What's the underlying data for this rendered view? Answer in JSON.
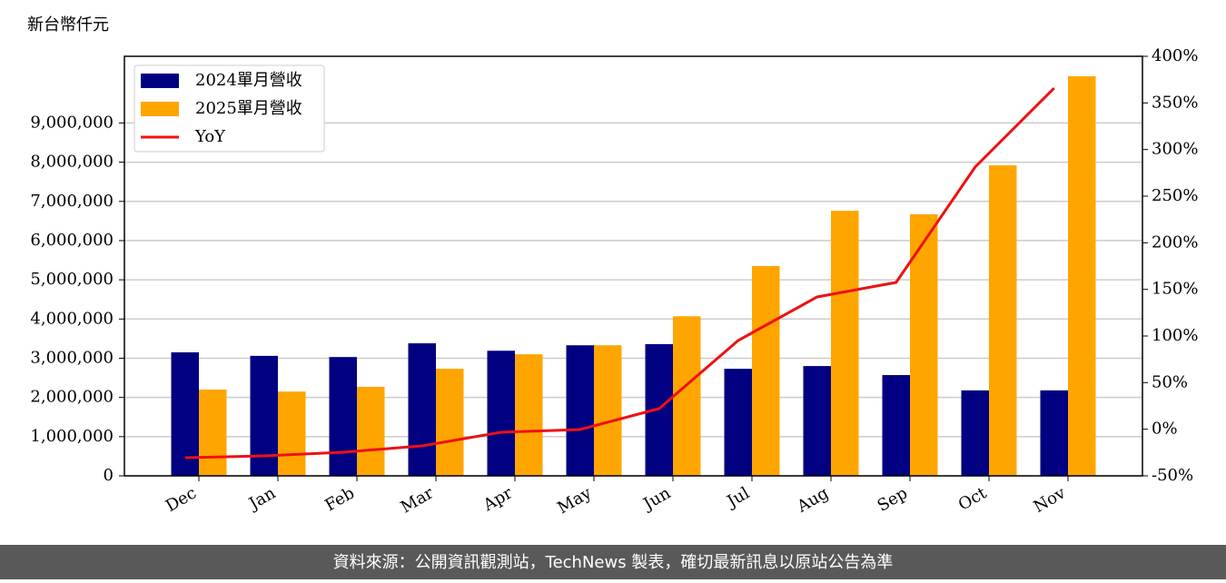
{
  "chart_data": {
    "type": "bar",
    "ylabel": "新台幣仟元",
    "categories": [
      "Dec",
      "Jan",
      "Feb",
      "Mar",
      "Apr",
      "May",
      "Jun",
      "Jul",
      "Aug",
      "Sep",
      "Oct",
      "Nov"
    ],
    "series": [
      {
        "name": "2024單月營收",
        "type": "bar",
        "color": "#000080",
        "axis": "y",
        "values": [
          3150000,
          3060000,
          3030000,
          3380000,
          3190000,
          3330000,
          3360000,
          2730000,
          2800000,
          2570000,
          2180000,
          2180000
        ]
      },
      {
        "name": "2025單月營收",
        "type": "bar",
        "color": "#ffa500",
        "axis": "y",
        "values": [
          2200000,
          2150000,
          2270000,
          2730000,
          3100000,
          3330000,
          4070000,
          5350000,
          6760000,
          6670000,
          7920000,
          10190000
        ]
      },
      {
        "name": "YoY",
        "type": "line",
        "color": "#ee1111",
        "axis": "y2",
        "values": [
          -30.5,
          -28.6,
          -24.7,
          -17.9,
          -3.2,
          -0.3,
          22.1,
          95.1,
          141.9,
          157.5,
          281.2,
          365.9
        ]
      }
    ],
    "ylim": [
      0,
      10700000
    ],
    "yticks": [
      0,
      {
        "value": 1000000,
        "label": "1,000,000"
      },
      {
        "value": 2000000,
        "label": "2,000,000"
      },
      {
        "value": 3000000,
        "label": "3,000,000"
      },
      {
        "value": 4000000,
        "label": "4,000,000"
      },
      {
        "value": 5000000,
        "label": "5,000,000"
      },
      {
        "value": 6000000,
        "label": "6,000,000"
      },
      {
        "value": 7000000,
        "label": "7,000,000"
      },
      {
        "value": 8000000,
        "label": "8,000,000"
      },
      {
        "value": 9000000,
        "label": "9,000,000"
      }
    ],
    "y2lim": [
      -50,
      400
    ],
    "y2ticks": [
      {
        "value": -50,
        "label": "-50%"
      },
      {
        "value": 0,
        "label": "0%"
      },
      {
        "value": 50,
        "label": "50%"
      },
      {
        "value": 100,
        "label": "100%"
      },
      {
        "value": 150,
        "label": "150%"
      },
      {
        "value": 200,
        "label": "200%"
      },
      {
        "value": 250,
        "label": "250%"
      },
      {
        "value": 300,
        "label": "300%"
      },
      {
        "value": 350,
        "label": "350%"
      },
      {
        "value": 400,
        "label": "400%"
      }
    ],
    "grid": true,
    "legend": "upper left",
    "source": "資料來源：公開資訊觀測站，TechNews 製表，確切最新訊息以原站公告為準"
  }
}
